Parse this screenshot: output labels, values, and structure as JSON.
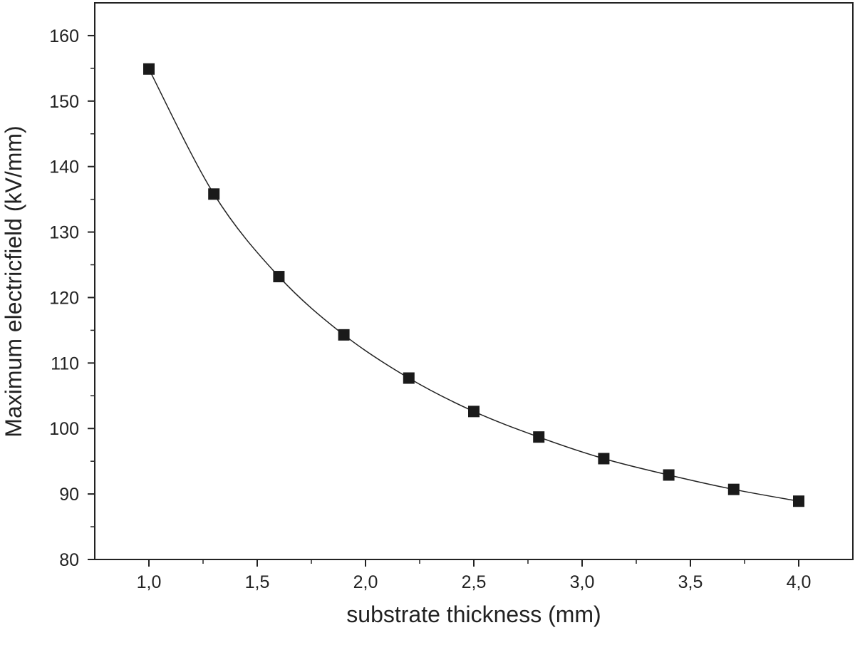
{
  "chart_data": {
    "type": "line",
    "title": "",
    "xlabel": "substrate thickness (mm)",
    "ylabel": "Maximum electricfield (kV/mm)",
    "xlim": [
      0.75,
      4.25
    ],
    "ylim": [
      80,
      165
    ],
    "x_ticks": [
      1.0,
      1.5,
      2.0,
      2.5,
      3.0,
      3.5,
      4.0
    ],
    "x_tick_labels": [
      "1,0",
      "1,5",
      "2,0",
      "2,5",
      "3,0",
      "3,5",
      "4,0"
    ],
    "y_ticks": [
      80,
      90,
      100,
      110,
      120,
      130,
      140,
      150,
      160
    ],
    "y_tick_labels": [
      "80",
      "90",
      "100",
      "110",
      "120",
      "130",
      "140",
      "150",
      "160"
    ],
    "grid": false,
    "marker": "square",
    "line_color": "#222222",
    "marker_color": "#1a1a1a",
    "series": [
      {
        "x": [
          1.0,
          1.3,
          1.6,
          1.9,
          2.2,
          2.5,
          2.8,
          3.1,
          3.4,
          3.7,
          4.0
        ],
        "y": [
          154.9,
          135.8,
          123.2,
          114.3,
          107.7,
          102.6,
          98.7,
          95.4,
          92.9,
          90.7,
          88.9
        ]
      }
    ]
  }
}
